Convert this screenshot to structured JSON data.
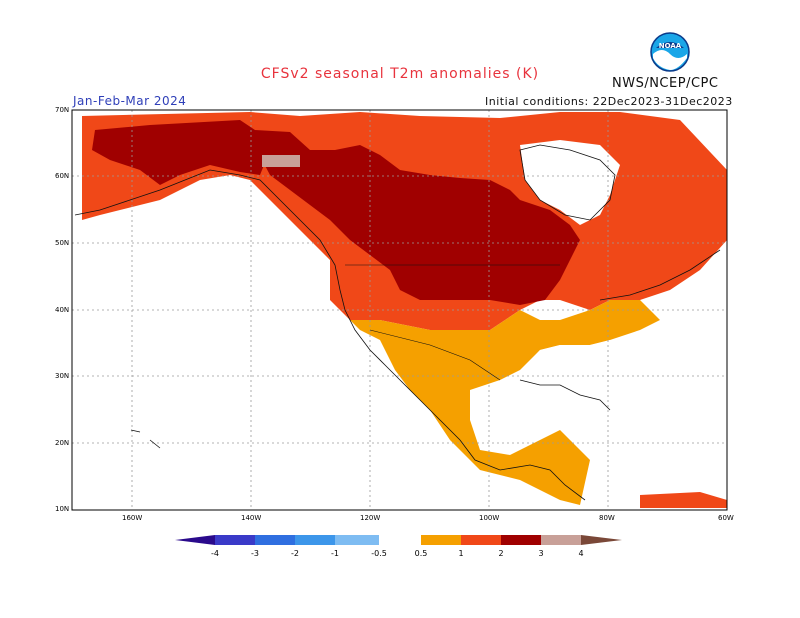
{
  "title": "CFSv2 seasonal T2m anomalies (K)",
  "agency": "NWS/NCEP/CPC",
  "period": "Jan-Feb-Mar 2024",
  "initial_conditions": "Initial conditions: 22Dec2023-31Dec2023",
  "logo_text": "NOAA",
  "lat_labels": [
    "70N",
    "60N",
    "50N",
    "40N",
    "30N",
    "20N",
    "10N"
  ],
  "lon_labels": [
    "160W",
    "140W",
    "120W",
    "100W",
    "80W",
    "60W"
  ],
  "colorbar": {
    "tick_labels": [
      "-4",
      "-3",
      "-2",
      "-1",
      "-0.5",
      "0.5",
      "1",
      "2",
      "3",
      "4"
    ],
    "colors": {
      "lt_-4": "#2a0a8c",
      "-4_-3": "#3a3ac8",
      "-3_-2": "#2f6fe0",
      "-2_-1": "#3c96ea",
      "-1_-0.5": "#7ebcf2",
      "-0.5_0.5": "#ffffff",
      "0.5_1": "#f5a000",
      "1_2": "#f04818",
      "2_3": "#a00000",
      "3_4": "#c8a098",
      "gt_4": "#7a4838"
    }
  },
  "anomaly_regions": [
    {
      "region": "Alaska and Yukon",
      "category": "2_3"
    },
    {
      "region": "Western Canada",
      "category": "2_3"
    },
    {
      "region": "Northern Great Plains",
      "category": "2_3"
    },
    {
      "region": "Small area in northern Yukon",
      "category": "3_4"
    },
    {
      "region": "Pacific Northwest and western US",
      "category": "1_2"
    },
    {
      "region": "Eastern Canada and Quebec",
      "category": "1_2"
    },
    {
      "region": "Northeast US",
      "category": "1_2"
    },
    {
      "region": "Southwest US and northern Mexico",
      "category": "0.5_1"
    },
    {
      "region": "Central Mexico",
      "category": "0.5_1"
    },
    {
      "region": "Southeast US",
      "category": "-0.5_0.5"
    },
    {
      "region": "Hudson Bay region",
      "category": "-0.5_0.5"
    },
    {
      "region": "Southern Mexico and Central America",
      "category": "0.5_1"
    }
  ]
}
